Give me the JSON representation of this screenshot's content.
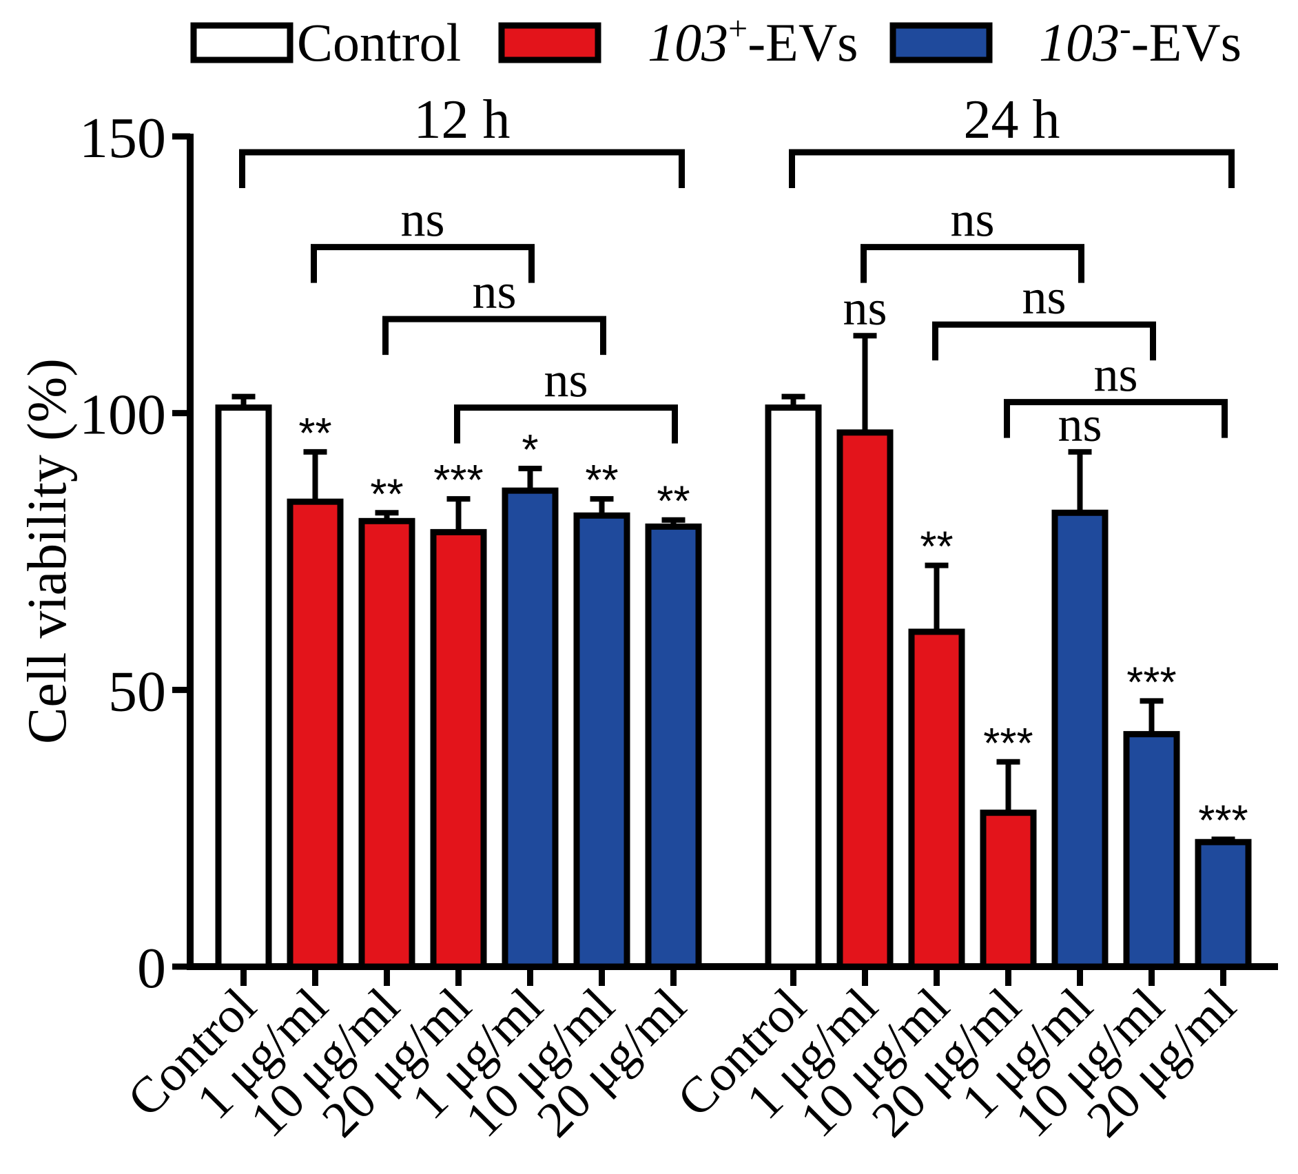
{
  "chart_data": {
    "type": "bar",
    "title": "",
    "xlabel": "",
    "ylabel": "Cell viability (%)",
    "ylim": [
      0,
      150
    ],
    "yticks": [
      0,
      50,
      100,
      150
    ],
    "grid": false,
    "legend_position": "top",
    "legend": [
      {
        "key": "control",
        "prefix": "",
        "sup": "",
        "suffix": "Control",
        "color": "#ffffff"
      },
      {
        "key": "pos",
        "prefix": "103",
        "sup": "+",
        "suffix": "-EVs",
        "color": "#e3141b"
      },
      {
        "key": "neg",
        "prefix": "103",
        "sup": "-",
        "suffix": "-EVs",
        "color": "#1f4a9c"
      }
    ],
    "groups": [
      {
        "label": "12 h",
        "bars": [
          {
            "category": "Control",
            "series": "control",
            "value": 101,
            "error": 2,
            "sig": ""
          },
          {
            "category": "1 μg/ml",
            "series": "pos",
            "value": 84,
            "error": 9,
            "sig": "**"
          },
          {
            "category": "10 μg/ml",
            "series": "pos",
            "value": 80.5,
            "error": 1.5,
            "sig": "**"
          },
          {
            "category": "20 μg/ml",
            "series": "pos",
            "value": 78.5,
            "error": 6,
            "sig": "***"
          },
          {
            "category": "1 μg/ml",
            "series": "neg",
            "value": 86,
            "error": 4,
            "sig": "*"
          },
          {
            "category": "10 μg/ml",
            "series": "neg",
            "value": 81.5,
            "error": 3,
            "sig": "**"
          },
          {
            "category": "20 μg/ml",
            "series": "neg",
            "value": 79.5,
            "error": 1.2,
            "sig": "**"
          }
        ],
        "comparisons": [
          {
            "from": 1,
            "to": 4,
            "y": 130,
            "label": "ns"
          },
          {
            "from": 2,
            "to": 5,
            "y": 117,
            "label": "ns"
          },
          {
            "from": 3,
            "to": 6,
            "y": 101,
            "label": "ns"
          }
        ]
      },
      {
        "label": "24 h",
        "bars": [
          {
            "category": "Control",
            "series": "control",
            "value": 101,
            "error": 2,
            "sig": ""
          },
          {
            "category": "1 μg/ml",
            "series": "pos",
            "value": 96.5,
            "error": 17.5,
            "sig": "ns"
          },
          {
            "category": "10 μg/ml",
            "series": "pos",
            "value": 60.5,
            "error": 12,
            "sig": "**"
          },
          {
            "category": "20 μg/ml",
            "series": "pos",
            "value": 27.8,
            "error": 9.2,
            "sig": "***"
          },
          {
            "category": "1 μg/ml",
            "series": "neg",
            "value": 82,
            "error": 11,
            "sig": "ns"
          },
          {
            "category": "10 μg/ml",
            "series": "neg",
            "value": 42,
            "error": 6,
            "sig": "***"
          },
          {
            "category": "20 μg/ml",
            "series": "neg",
            "value": 22.5,
            "error": 0.5,
            "sig": "***"
          }
        ],
        "comparisons": [
          {
            "from": 1,
            "to": 4,
            "y": 130,
            "label": "ns"
          },
          {
            "from": 2,
            "to": 5,
            "y": 116,
            "label": "ns"
          },
          {
            "from": 3,
            "to": 6,
            "y": 102,
            "label": "ns"
          }
        ]
      }
    ]
  }
}
